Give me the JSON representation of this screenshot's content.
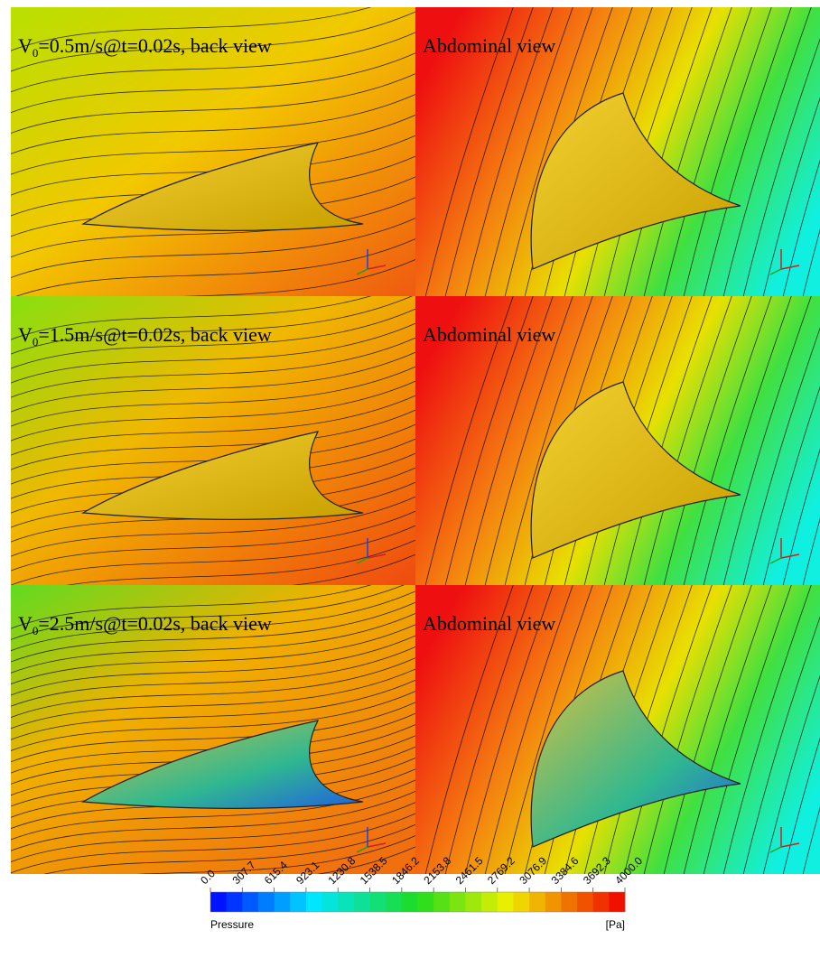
{
  "panels": [
    {
      "label_main": "V",
      "label_sub": "0",
      "label_rest": "=0.5m/s@t=0.02s, back view"
    },
    {
      "label": "Abdominal view"
    },
    {
      "label_main": "V",
      "label_sub": "0",
      "label_rest": "=1.5m/s@t=0.02s, back view"
    },
    {
      "label": "Abdominal view"
    },
    {
      "label_main": "V",
      "label_sub": "0",
      "label_rest": "=2.5m/s@t=0.02s, back view"
    },
    {
      "label": "Abdominal view"
    }
  ],
  "colorbar": {
    "title": "Pressure",
    "unit": "[Pa]",
    "range": [
      0,
      4000
    ],
    "ticks": [
      {
        "value": 0,
        "label": "0.0"
      },
      {
        "value": 307.7,
        "label": "307.7"
      },
      {
        "value": 615.4,
        "label": "615.4"
      },
      {
        "value": 923.1,
        "label": "923.1"
      },
      {
        "value": 1230.8,
        "label": "1230.8"
      },
      {
        "value": 1538.5,
        "label": "1538.5"
      },
      {
        "value": 1846.2,
        "label": "1846.2"
      },
      {
        "value": 2153.8,
        "label": "2153.8"
      },
      {
        "value": 2461.5,
        "label": "2461.5"
      },
      {
        "value": 2769.2,
        "label": "2769.2"
      },
      {
        "value": 3076.9,
        "label": "3076.9"
      },
      {
        "value": 3384.6,
        "label": "3384.6"
      },
      {
        "value": 3692.3,
        "label": "3692.3"
      },
      {
        "value": 4000,
        "label": "4000.0"
      }
    ]
  }
}
